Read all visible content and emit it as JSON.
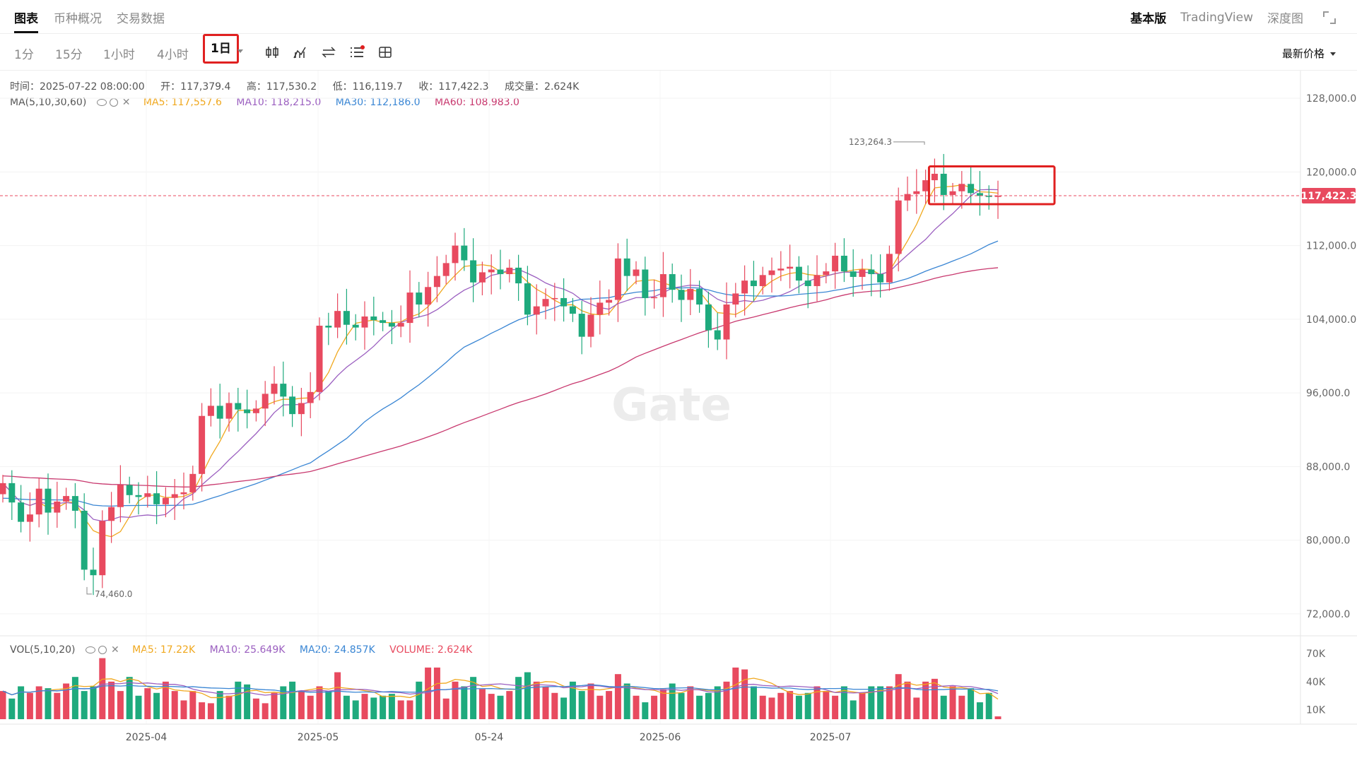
{
  "tabs": [
    {
      "label": "图表",
      "active": true
    },
    {
      "label": "币种概况",
      "active": false
    },
    {
      "label": "交易数据",
      "active": false
    }
  ],
  "right_links": [
    {
      "label": "基本版",
      "active": true
    },
    {
      "label": "TradingView",
      "active": false
    },
    {
      "label": "深度图",
      "active": false
    }
  ],
  "intervals": [
    {
      "label": "1分",
      "active": false
    },
    {
      "label": "15分",
      "active": false
    },
    {
      "label": "1小时",
      "active": false
    },
    {
      "label": "4小时",
      "active": false
    },
    {
      "label": "1日",
      "active": true
    }
  ],
  "tool_icons": [
    "candle-type-icon",
    "indicator-icon",
    "compare-icon",
    "settings-list-icon",
    "layout-icon"
  ],
  "price_select": "最新价格",
  "ohlc": {
    "time": "时间：2025-07-22 08:00:00",
    "open": "开：117,379.4",
    "high": "高：117,530.2",
    "low": "低：116,119.7",
    "close": "收：117,422.3",
    "volume": "成交量：2.624K"
  },
  "ma": {
    "label": "MA(5,10,30,60)",
    "ma5": "MA5: 117,557.6",
    "ma10": "MA10: 118,215.0",
    "ma30": "MA30: 112,186.0",
    "ma60": "MA60: 108,983.0"
  },
  "vol": {
    "label": "VOL(5,10,20)",
    "ma5": "MA5: 17.22K",
    "ma10": "MA10: 25.649K",
    "ma20": "MA20: 24.857K",
    "volume": "VOLUME: 2.624K"
  },
  "colors": {
    "up": "#e84a5f",
    "down": "#1eaa7d",
    "ma5": "#f0a81e",
    "ma10": "#9b5fc0",
    "ma30": "#3a86d4",
    "ma60": "#c8386e",
    "highlight": "#e02020"
  },
  "chart_data": {
    "type": "candlestick",
    "x_ticks": [
      "2025-04",
      "2025-05",
      "05-24",
      "2025-06",
      "2025-07"
    ],
    "y_ticks": [
      "128,000.0",
      "120,000.0",
      "112,000.0",
      "104,000.0",
      "96,000.0",
      "88,000.0",
      "80,000.0",
      "72,000.0"
    ],
    "y_range": [
      70000,
      131000
    ],
    "vol_ticks": [
      "70K",
      "40K",
      "10K"
    ],
    "vol_range": [
      0,
      85
    ],
    "last_price": 117422.3,
    "last_price_label": "117,422.3",
    "high_annotation": {
      "label": "123,264.3",
      "value": 123264.3
    },
    "low_annotation": {
      "label": "74,460.0",
      "value": 74460
    },
    "watermark": "Gate",
    "closes": [
      86200,
      84100,
      82000,
      82800,
      85600,
      83000,
      84200,
      84800,
      83200,
      76800,
      76200,
      82100,
      83600,
      86000,
      84900,
      84700,
      85100,
      83900,
      84600,
      85000,
      85200,
      87200,
      93500,
      94600,
      93200,
      94900,
      94200,
      93800,
      94300,
      95900,
      97000,
      95600,
      93700,
      94900,
      96100,
      103300,
      103100,
      104900,
      103400,
      103100,
      104300,
      103900,
      103600,
      103200,
      103600,
      106900,
      105600,
      107500,
      108700,
      110100,
      112000,
      110400,
      108000,
      109100,
      109400,
      108900,
      109600,
      107900,
      104500,
      105400,
      106200,
      106300,
      105400,
      104600,
      102100,
      104500,
      105800,
      106100,
      110600,
      108700,
      109400,
      106300,
      106400,
      108900,
      107200,
      106100,
      107300,
      105600,
      102800,
      101800,
      105600,
      106800,
      108200,
      107600,
      108800,
      109300,
      109500,
      109700,
      108200,
      107600,
      108800,
      109200,
      110900,
      109200,
      108600,
      109400,
      108900,
      108000,
      111100,
      116900,
      117600,
      117900,
      119100,
      119800,
      117500,
      117900,
      118700,
      117700,
      117400,
      117300,
      117400
    ],
    "volumes": [
      30,
      22,
      35,
      28,
      35,
      33,
      28,
      38,
      45,
      30,
      35,
      65,
      40,
      30,
      45,
      25,
      33,
      28,
      40,
      30,
      20,
      30,
      18,
      17,
      30,
      25,
      40,
      37,
      22,
      17,
      28,
      35,
      40,
      30,
      25,
      35,
      30,
      50,
      25,
      20,
      27,
      23,
      25,
      27,
      20,
      20,
      40,
      55,
      55,
      22,
      40,
      35,
      45,
      32,
      27,
      25,
      30,
      45,
      50,
      40,
      35,
      28,
      23,
      40,
      30,
      38,
      25,
      30,
      48,
      38,
      25,
      18,
      25,
      32,
      38,
      28,
      35,
      25,
      28,
      35,
      40,
      55,
      53,
      35,
      25,
      23,
      28,
      30,
      25,
      28,
      35,
      30,
      25,
      35,
      20,
      28,
      35,
      35,
      35,
      48,
      40,
      23,
      40,
      43,
      25,
      35,
      25,
      33,
      18,
      28,
      3
    ]
  }
}
